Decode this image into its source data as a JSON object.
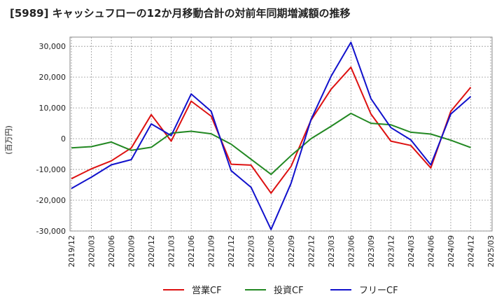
{
  "chart_data": {
    "type": "line",
    "title": "[5989]  キャッシュフローの12か月移動合計の対前年同期増減額の推移",
    "ylabel": "(百万円)",
    "xlabel": "",
    "ylim": [
      -30000,
      33000
    ],
    "y_ticks": [
      30000,
      20000,
      10000,
      0,
      -10000,
      -20000,
      -30000
    ],
    "y_tick_labels": [
      "30,000",
      "20,000",
      "10,000",
      "0",
      "-10,000",
      "-20,000",
      "-30,000"
    ],
    "x_tick_labels": [
      "2019/12",
      "2020/03",
      "2020/06",
      "2020/09",
      "2020/12",
      "2021/03",
      "2021/06",
      "2021/09",
      "2021/12",
      "2022/03",
      "2022/06",
      "2022/09",
      "2022/12",
      "2023/03",
      "2023/06",
      "2023/09",
      "2023/12",
      "2024/03",
      "2024/06",
      "2024/09",
      "2024/12",
      "2025/03"
    ],
    "grid": true,
    "legend_position": "bottom",
    "categories": [
      "2019/12",
      "2020/03",
      "2020/06",
      "2020/09",
      "2020/12",
      "2021/03",
      "2021/06",
      "2021/09",
      "2021/12",
      "2022/03",
      "2022/06",
      "2022/09",
      "2022/12",
      "2023/03",
      "2023/06",
      "2023/09",
      "2023/12",
      "2024/03",
      "2024/06",
      "2024/09",
      "2024/12"
    ],
    "series": [
      {
        "name": "営業CF",
        "color": "#dd1111",
        "values": [
          -13000,
          -9800,
          -7200,
          -3000,
          7800,
          -800,
          12200,
          7300,
          -8300,
          -8600,
          -17700,
          -9000,
          6000,
          16000,
          23200,
          8000,
          -800,
          -2200,
          -9500,
          8900,
          16700
        ]
      },
      {
        "name": "投資CF",
        "color": "#228822",
        "values": [
          -3000,
          -2600,
          -1100,
          -3800,
          -2800,
          1800,
          2400,
          1600,
          -1800,
          -6700,
          -11600,
          -5500,
          0,
          4000,
          8200,
          5000,
          4500,
          2100,
          1500,
          -500,
          -2900
        ]
      },
      {
        "name": "フリーCF",
        "color": "#1111cc",
        "values": [
          -16200,
          -12500,
          -8500,
          -6800,
          4800,
          1000,
          14500,
          8900,
          -10400,
          -15800,
          -29500,
          -14500,
          6200,
          20200,
          31300,
          13000,
          3600,
          -400,
          -8500,
          8000,
          13700
        ]
      }
    ]
  }
}
